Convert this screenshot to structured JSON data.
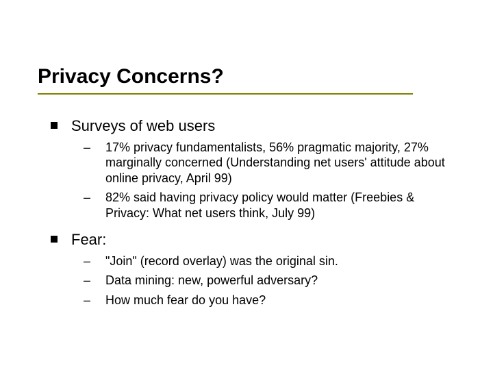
{
  "slide": {
    "title": "Privacy Concerns?",
    "title_fontsize": 30,
    "title_color": "#000000",
    "underline_color": "#808000",
    "background_color": "#ffffff",
    "body_fontsize_l1": 22,
    "body_fontsize_l2": 18,
    "bullet_l1_shape": "square",
    "bullet_l1_color": "#000000",
    "bullet_l2_glyph": "–",
    "items": [
      {
        "text": "Surveys of web users",
        "children": [
          {
            "text": "17% privacy fundamentalists, 56% pragmatic majority, 27% marginally concerned (Understanding net users' attitude about online privacy, April 99)"
          },
          {
            "text": "82% said having privacy policy would matter (Freebies & Privacy: What net users think, July 99)"
          }
        ]
      },
      {
        "text": "Fear:",
        "children": [
          {
            "text": "\"Join\" (record overlay) was the original sin."
          },
          {
            "text": "Data mining: new, powerful adversary?"
          },
          {
            "text": "How much fear do you have?"
          }
        ]
      }
    ]
  }
}
